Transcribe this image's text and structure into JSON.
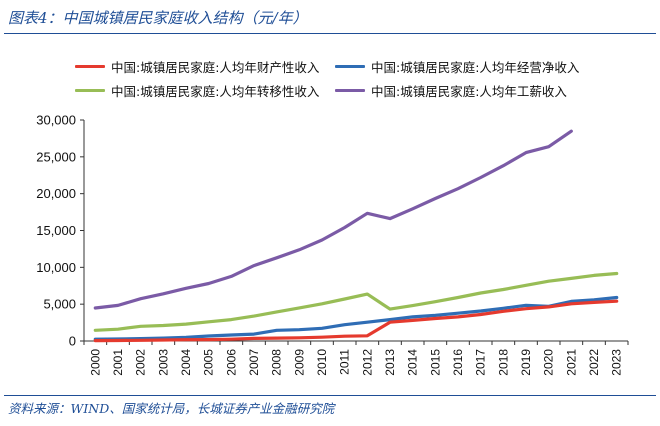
{
  "title": "图表4：中国城镇居民家庭收入结构（元/年）",
  "source": "资料来源：WIND、国家统计局，长城证券产业金融研究院",
  "chart_data": {
    "type": "line",
    "x": [
      "2000",
      "2001",
      "2002",
      "2003",
      "2004",
      "2005",
      "2006",
      "2007",
      "2008",
      "2009",
      "2010",
      "2011",
      "2012",
      "2013",
      "2014",
      "2015",
      "2016",
      "2017",
      "2018",
      "2019",
      "2020",
      "2021",
      "2022",
      "2023"
    ],
    "ylim": [
      0,
      30000
    ],
    "yticks": [
      "0",
      "5,000",
      "10,000",
      "15,000",
      "20,000",
      "25,000",
      "30,000"
    ],
    "ytick_values": [
      0,
      5000,
      10000,
      15000,
      20000,
      25000,
      30000
    ],
    "grid": false,
    "legend_position": "top",
    "series": [
      {
        "name": "中国:城镇居民家庭:人均年财产性收入",
        "color": "#e53a2e",
        "values": [
          50,
          70,
          100,
          140,
          170,
          190,
          240,
          350,
          390,
          430,
          520,
          650,
          700,
          2550,
          2800,
          3050,
          3270,
          3600,
          4030,
          4390,
          4630,
          5050,
          5240,
          5400
        ]
      },
      {
        "name": "中国:城镇居民家庭:人均年经营净收入",
        "color": "#2f6db5",
        "values": [
          250,
          270,
          330,
          390,
          490,
          680,
          810,
          940,
          1450,
          1530,
          1720,
          2210,
          2550,
          2900,
          3270,
          3480,
          3770,
          4070,
          4440,
          4840,
          4710,
          5380,
          5580,
          5900
        ]
      },
      {
        "name": "中国:城镇居民家庭:人均年转移性收入",
        "color": "#98bd56",
        "values": [
          1450,
          1600,
          2000,
          2100,
          2300,
          2600,
          2900,
          3380,
          3950,
          4500,
          5050,
          5700,
          6370,
          4330,
          4810,
          5340,
          5910,
          6520,
          6990,
          7560,
          8120,
          8500,
          8900,
          9160
        ]
      },
      {
        "name": "中国:城镇居民家庭:人均年工薪收入",
        "color": "#7b5ba6",
        "values": [
          4480,
          4830,
          5740,
          6410,
          7150,
          7800,
          8770,
          10230,
          11300,
          12380,
          13710,
          15410,
          17340,
          16620,
          17940,
          19340,
          20670,
          22200,
          23790,
          25570,
          26380,
          28480,
          null,
          null
        ]
      }
    ]
  }
}
